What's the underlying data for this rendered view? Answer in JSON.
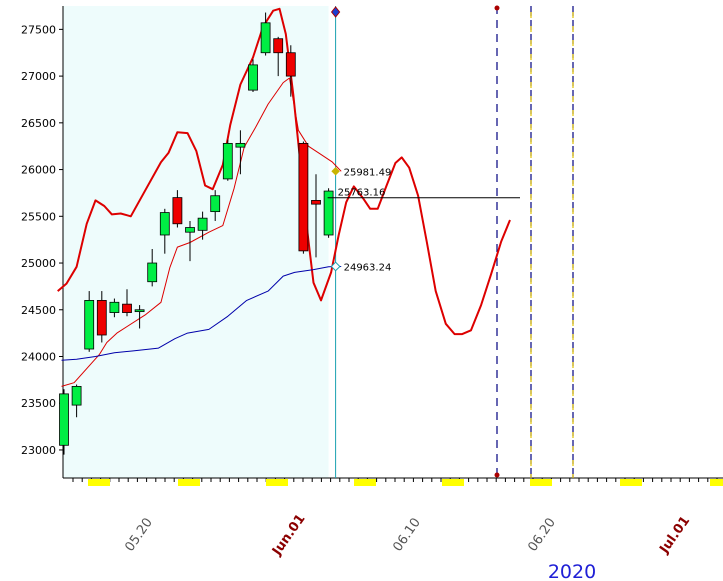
{
  "chart_data": {
    "type": "candlestick",
    "year_label": "2020",
    "ylim": [
      22700,
      27750
    ],
    "y_ticks": [
      23000,
      23500,
      24000,
      24500,
      25000,
      25500,
      26000,
      26500,
      27000,
      27500
    ],
    "y_tick_labels": [
      "23000",
      "23500",
      "24000",
      "24500",
      "25000",
      "25500",
      "26000",
      "26500",
      "27000",
      "27500"
    ],
    "x_tick_labels": [
      {
        "text": "05.20",
        "color": "#555555",
        "bold": false
      },
      {
        "text": "Jun.01",
        "color": "#8b0000",
        "bold": true
      },
      {
        "text": "06.10",
        "color": "#555555",
        "bold": false
      },
      {
        "text": "06.20",
        "color": "#555555",
        "bold": false
      },
      {
        "text": "Jul.01",
        "color": "#8b0000",
        "bold": true
      }
    ],
    "value_labels": [
      {
        "text": "25981.49",
        "value": 25981.49,
        "marker_color": "#c8b400"
      },
      {
        "text": "25763.16",
        "value": 25763.16,
        "marker_color": "#000000"
      },
      {
        "text": "24963.24",
        "value": 24963.24,
        "marker_color": "#1aa0b0"
      }
    ],
    "candles": [
      {
        "o": 23050,
        "h": 23650,
        "l": 22950,
        "c": 23600
      },
      {
        "o": 23480,
        "h": 23700,
        "l": 23350,
        "c": 23680
      },
      {
        "o": 24080,
        "h": 24700,
        "l": 24050,
        "c": 24600
      },
      {
        "o": 24600,
        "h": 24700,
        "l": 24150,
        "c": 24230
      },
      {
        "o": 24470,
        "h": 24620,
        "l": 24420,
        "c": 24580
      },
      {
        "o": 24560,
        "h": 24720,
        "l": 24430,
        "c": 24470
      },
      {
        "o": 24480,
        "h": 24550,
        "l": 24300,
        "c": 24500
      },
      {
        "o": 24800,
        "h": 25150,
        "l": 24750,
        "c": 25000
      },
      {
        "o": 25300,
        "h": 25580,
        "l": 25100,
        "c": 25540
      },
      {
        "o": 25700,
        "h": 25780,
        "l": 25380,
        "c": 25420
      },
      {
        "o": 25330,
        "h": 25450,
        "l": 25020,
        "c": 25380
      },
      {
        "o": 25350,
        "h": 25550,
        "l": 25250,
        "c": 25480
      },
      {
        "o": 25550,
        "h": 25780,
        "l": 25450,
        "c": 25720
      },
      {
        "o": 25900,
        "h": 26320,
        "l": 25880,
        "c": 26280
      },
      {
        "o": 26240,
        "h": 26420,
        "l": 25950,
        "c": 26280
      },
      {
        "o": 26850,
        "h": 27180,
        "l": 26830,
        "c": 27120
      },
      {
        "o": 27250,
        "h": 27680,
        "l": 27220,
        "c": 27570
      },
      {
        "o": 27400,
        "h": 27420,
        "l": 27000,
        "c": 27250
      },
      {
        "o": 27250,
        "h": 27330,
        "l": 26780,
        "c": 27000
      },
      {
        "o": 26280,
        "h": 26300,
        "l": 25100,
        "c": 25130
      },
      {
        "o": 25670,
        "h": 25950,
        "l": 25060,
        "c": 25630
      },
      {
        "o": 25300,
        "h": 25800,
        "l": 25270,
        "c": 25770
      }
    ],
    "series": [
      {
        "name": "",
        "color": "#dd0000",
        "stroke_width": 2,
        "values": [
          [
            -0.5,
            24700
          ],
          [
            0.2,
            24780
          ],
          [
            1,
            24960
          ],
          [
            1.8,
            25420
          ],
          [
            2.5,
            25670
          ],
          [
            3.2,
            25610
          ],
          [
            3.8,
            25520
          ],
          [
            4.5,
            25530
          ],
          [
            5.3,
            25500
          ],
          [
            6.5,
            25790
          ],
          [
            7.7,
            26080
          ],
          [
            8.3,
            26180
          ],
          [
            9,
            26400
          ],
          [
            9.8,
            26390
          ],
          [
            10.5,
            26200
          ],
          [
            11.2,
            25830
          ],
          [
            11.8,
            25790
          ],
          [
            12.6,
            26050
          ],
          [
            13.2,
            26480
          ],
          [
            14,
            26910
          ],
          [
            15,
            27200
          ],
          [
            15.8,
            27530
          ],
          [
            16.6,
            27700
          ],
          [
            17.1,
            27720
          ],
          [
            17.6,
            27450
          ],
          [
            18.2,
            26800
          ],
          [
            18.7,
            26150
          ],
          [
            19.3,
            25350
          ],
          [
            19.8,
            24790
          ],
          [
            20.4,
            24600
          ],
          [
            21.2,
            24900
          ],
          [
            21.8,
            25300
          ],
          [
            22.4,
            25650
          ],
          [
            23,
            25820
          ],
          [
            23.7,
            25700
          ],
          [
            24.3,
            25580
          ],
          [
            24.9,
            25580
          ],
          [
            25.6,
            25830
          ],
          [
            26.3,
            26070
          ],
          [
            26.8,
            26130
          ],
          [
            27.4,
            26020
          ],
          [
            28.1,
            25720
          ],
          [
            28.8,
            25220
          ],
          [
            29.5,
            24700
          ],
          [
            30.3,
            24350
          ],
          [
            31,
            24240
          ],
          [
            31.6,
            24240
          ],
          [
            32.3,
            24280
          ],
          [
            33.1,
            24550
          ],
          [
            33.9,
            24880
          ],
          [
            34.7,
            25230
          ],
          [
            35.4,
            25460
          ]
        ]
      },
      {
        "name": "",
        "color": "#dd0000",
        "stroke_width": 1,
        "values": [
          [
            -0.2,
            23680
          ],
          [
            0.8,
            23720
          ],
          [
            2.8,
            24020
          ],
          [
            3.4,
            24150
          ],
          [
            4.2,
            24250
          ],
          [
            6.5,
            24450
          ],
          [
            7.7,
            24580
          ],
          [
            8.4,
            24950
          ],
          [
            9,
            25170
          ],
          [
            10,
            25220
          ],
          [
            11.5,
            25330
          ],
          [
            12.6,
            25400
          ],
          [
            13.5,
            25800
          ],
          [
            14.3,
            26240
          ],
          [
            15.2,
            26450
          ],
          [
            16.2,
            26700
          ],
          [
            17.4,
            26930
          ],
          [
            17.9,
            26980
          ],
          [
            18.6,
            26420
          ],
          [
            19.4,
            26250
          ],
          [
            20.3,
            26170
          ],
          [
            21.3,
            26080
          ],
          [
            22,
            25981.49
          ]
        ]
      },
      {
        "name": "",
        "color": "#0000aa",
        "stroke_width": 1,
        "values": [
          [
            -0.2,
            23960
          ],
          [
            1,
            23970
          ],
          [
            2.5,
            24000
          ],
          [
            4,
            24040
          ],
          [
            5.5,
            24060
          ],
          [
            7.5,
            24090
          ],
          [
            8.8,
            24190
          ],
          [
            9.8,
            24250
          ],
          [
            11.5,
            24290
          ],
          [
            13,
            24430
          ],
          [
            14.5,
            24600
          ],
          [
            16.2,
            24700
          ],
          [
            17.4,
            24860
          ],
          [
            18.3,
            24900
          ],
          [
            19.8,
            24930
          ],
          [
            21,
            24960
          ],
          [
            22,
            24963.24
          ]
        ]
      }
    ],
    "black_level": 25763.16
  }
}
